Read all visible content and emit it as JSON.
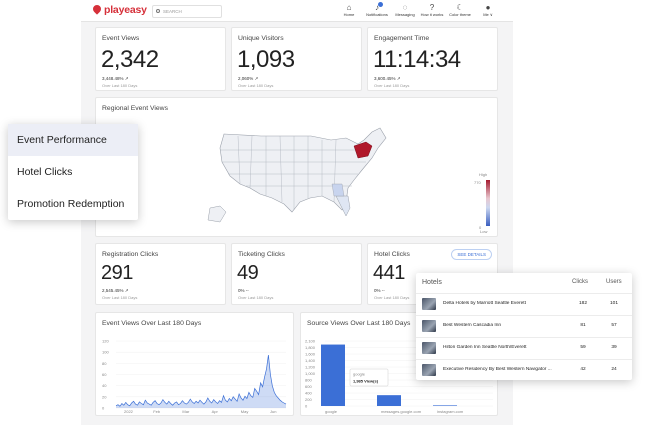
{
  "app": {
    "logo": "playeasy",
    "search_placeholder": "SEARCH"
  },
  "nav": [
    {
      "icon": "home-icon",
      "glyph": "⌂",
      "label": "Home"
    },
    {
      "icon": "bell-icon",
      "glyph": "♪",
      "label": "Notifications"
    },
    {
      "icon": "chat-icon",
      "glyph": "◌",
      "label": "Messaging"
    },
    {
      "icon": "help-icon",
      "glyph": "?",
      "label": "How it works"
    },
    {
      "icon": "moon-icon",
      "glyph": "☾",
      "label": "Color theme"
    },
    {
      "icon": "avatar-icon",
      "glyph": "●",
      "label": "Me ∨"
    }
  ],
  "stats": {
    "event_views": {
      "title": "Event Views",
      "value": "2,342",
      "pct": "3,448.48% ↗",
      "sub": "Over Last 180 Days"
    },
    "unique_visitors": {
      "title": "Unique Visitors",
      "value": "1,093",
      "pct": "2,060% ↗",
      "sub": "Over Last 180 Days"
    },
    "engagement_time": {
      "title": "Engagement Time",
      "value": "11:14:34",
      "pct": "3,600.45% ↗",
      "sub": "Over Last 180 Days"
    },
    "registration_clicks": {
      "title": "Registration Clicks",
      "value": "291",
      "pct": "2,545.45% ↗",
      "sub": "Over Last 180 Days"
    },
    "ticketing_clicks": {
      "title": "Ticketing Clicks",
      "value": "49",
      "pct": "0% --",
      "sub": "Over Last 180 Days"
    },
    "hotel_clicks": {
      "title": "Hotel Clicks",
      "value": "441",
      "pct": "0% --",
      "sub": "Over Last 180 Days",
      "button": "SEE DETAILS"
    }
  },
  "regional": {
    "title": "Regional Event Views",
    "legend_high": "High",
    "legend_low": "Low",
    "legend_max": "770",
    "legend_min": "0"
  },
  "menu": {
    "items": [
      "Event Performance",
      "Hotel Clicks",
      "Promotion Redemption"
    ]
  },
  "hotels": {
    "headers": {
      "name": "Hotels",
      "clicks": "Clicks",
      "users": "Users"
    },
    "rows": [
      {
        "name": "Delta Hotels by Marriott Seattle Everett",
        "clicks": "182",
        "users": "101"
      },
      {
        "name": "Best Western Cascadia Inn",
        "clicks": "81",
        "users": "57"
      },
      {
        "name": "Hilton Garden Inn Seattle North/Everett",
        "clicks": "59",
        "users": "39"
      },
      {
        "name": "Executive Residency By Best Western Navigator ...",
        "clicks": "42",
        "users": "24"
      }
    ]
  },
  "chart_data": [
    {
      "type": "area",
      "title": "Event Views Over Last 180 Days",
      "ylim": [
        0,
        120
      ],
      "yticks": [
        "0",
        "20",
        "40",
        "60",
        "80",
        "100",
        "120"
      ],
      "xticks": [
        "2022",
        "Feb",
        "Mar",
        "Apr",
        "May",
        "Jun"
      ],
      "color": "#3b6fd6",
      "series": [
        {
          "values": [
            4,
            6,
            3,
            8,
            5,
            10,
            6,
            4,
            9,
            12,
            7,
            5,
            11,
            8,
            6,
            14,
            9,
            7,
            5,
            10,
            13,
            8,
            6,
            9,
            15,
            10,
            7,
            12,
            8,
            5,
            9,
            11,
            6,
            8,
            13,
            9,
            7,
            10,
            16,
            11,
            8,
            12,
            9,
            14,
            10,
            7,
            11,
            18,
            12,
            9,
            15,
            11,
            8,
            13,
            10,
            22,
            14,
            11,
            17,
            13,
            20,
            16,
            12,
            25,
            18,
            14,
            21,
            17,
            28,
            22,
            19,
            35,
            30,
            24,
            45,
            38,
            55,
            70,
            95,
            60,
            40,
            28,
            22,
            18,
            14,
            11,
            9,
            7
          ]
        }
      ]
    },
    {
      "type": "bar",
      "title": "Source Views Over Last 180 Days",
      "ylim": [
        0,
        2100
      ],
      "yticks": [
        "0",
        "200",
        "400",
        "600",
        "800",
        "1,000",
        "1,200",
        "1,400",
        "1,600",
        "1,800",
        "2,100"
      ],
      "categories": [
        "google",
        "messages.google.com",
        "instagram.com"
      ],
      "values": [
        1985,
        350,
        20
      ],
      "color": "#3b6fd6",
      "tooltip": {
        "label": "google",
        "value": "1,985 View(s)"
      }
    }
  ]
}
